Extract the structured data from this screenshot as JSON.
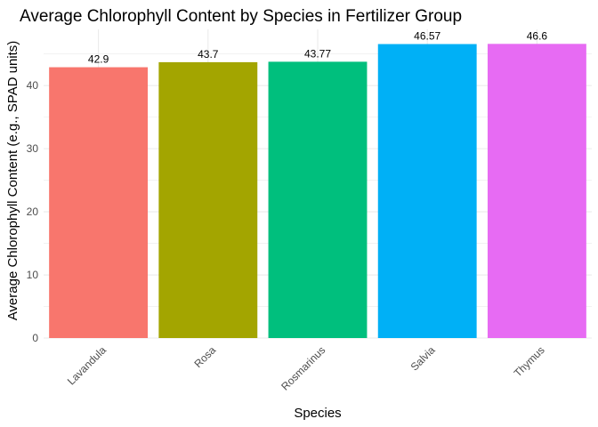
{
  "chart_data": {
    "type": "bar",
    "title": "Average Chlorophyll Content by Species in Fertilizer Group",
    "xlabel": "Species",
    "ylabel": "Average Chlorophyll Content (e.g., SPAD units)",
    "categories": [
      "Lavandula",
      "Rosa",
      "Rosmarinus",
      "Salvia",
      "Thymus"
    ],
    "values": [
      42.9,
      43.7,
      43.77,
      46.57,
      46.6
    ],
    "data_labels": [
      "42.9",
      "43.7",
      "43.77",
      "46.57",
      "46.6"
    ],
    "colors": [
      "#F8766D",
      "#A3A500",
      "#00BF7D",
      "#00B0F6",
      "#E76BF3"
    ],
    "ylim": [
      0,
      48.9
    ],
    "yticks": [
      0,
      10,
      20,
      30,
      40
    ],
    "ytick_labels": [
      "0",
      "10",
      "20",
      "30",
      "40"
    ],
    "grid": true,
    "legend": "none",
    "xtick_rotation_deg": 45
  }
}
